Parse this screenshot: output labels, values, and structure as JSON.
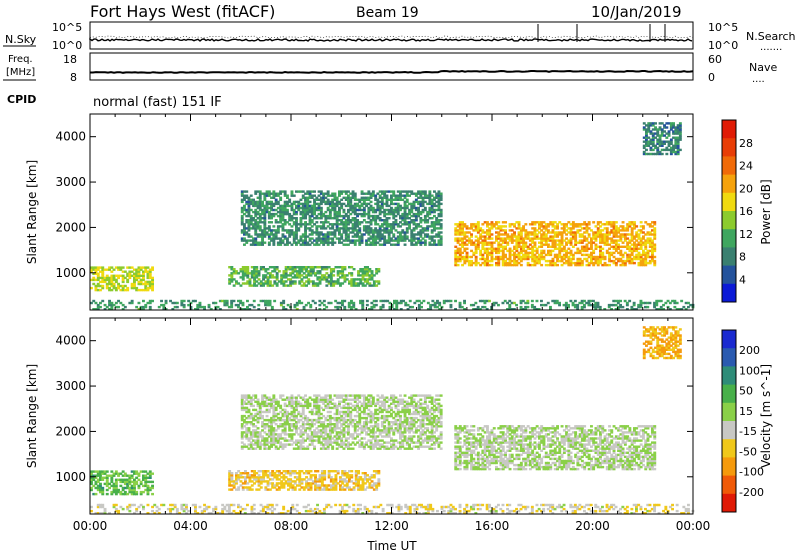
{
  "header": {
    "station": "Fort Hays West (fitACF)",
    "beam": "Beam 19",
    "date": "10/Jan/2019"
  },
  "noise_panel": {
    "left_label": "N.Sky",
    "left_ticks": [
      "10^5",
      "10^0"
    ],
    "right_label": "N.Search",
    "right_ticks": [
      "10^5",
      "10^0"
    ],
    "legend_dots": "......."
  },
  "freq_panel": {
    "left_label_1": "Freq.",
    "left_label_2": "[MHz]",
    "left_ticks": [
      "18",
      "8"
    ],
    "right_label": "Nave",
    "right_ticks": [
      "60",
      "0"
    ],
    "legend_dots": "...."
  },
  "cpid": {
    "label": "CPID",
    "text": "normal (fast) 151 IF"
  },
  "colors": {
    "power_scale": [
      "#0b1ad6",
      "#24539c",
      "#3a8070",
      "#3fa65f",
      "#8ccb2e",
      "#f0da10",
      "#f5a20c",
      "#f06a08",
      "#e83d06",
      "#e01b05"
    ],
    "velocity_scale": [
      "#e01a06",
      "#f05a08",
      "#f59a0c",
      "#f0c81a",
      "#c8c8c4",
      "#8ad048",
      "#48b04a",
      "#2e8c78",
      "#2a5ab0",
      "#1a2ad0"
    ]
  },
  "chart_data": [
    {
      "type": "heatmap",
      "name": "power",
      "xlabel": "",
      "ylabel": "Slant Range [km]",
      "xlim": [
        "00:00",
        "24:00"
      ],
      "ylim": [
        180,
        4500
      ],
      "yticks": [
        1000,
        2000,
        3000,
        4000
      ],
      "colorbar": {
        "label": "Power [dB]",
        "ticks": [
          4,
          8,
          12,
          16,
          20,
          24,
          28
        ],
        "range": [
          0,
          32
        ]
      },
      "echo_regions": [
        {
          "t_start": "00:00",
          "t_end": "02:30",
          "range_km": [
            600,
            1100
          ],
          "value": 16
        },
        {
          "t_start": "05:30",
          "t_end": "11:30",
          "range_km": [
            700,
            1150
          ],
          "value": 12
        },
        {
          "t_start": "06:00",
          "t_end": "14:00",
          "range_km": [
            1600,
            2800
          ],
          "value": 9
        },
        {
          "t_start": "14:30",
          "t_end": "22:30",
          "range_km": [
            1150,
            2100
          ],
          "value": 20
        },
        {
          "t_start": "22:00",
          "t_end": "23:30",
          "range_km": [
            3600,
            4300
          ],
          "value": 8
        },
        {
          "t_start": "00:00",
          "t_end": "24:00",
          "range_km": [
            180,
            400
          ],
          "value": 10
        }
      ]
    },
    {
      "type": "heatmap",
      "name": "velocity",
      "xlabel": "Time UT",
      "ylabel": "Slant Range [km]",
      "xticks": [
        "00:00",
        "04:00",
        "08:00",
        "12:00",
        "16:00",
        "20:00",
        "00:00"
      ],
      "ylim": [
        180,
        4500
      ],
      "yticks": [
        1000,
        2000,
        3000,
        4000
      ],
      "colorbar": {
        "label": "Velocity [m s^-1]",
        "ticks": [
          200,
          100,
          50,
          15,
          -15,
          -50,
          -100,
          -200
        ],
        "range": [
          -250,
          250
        ]
      },
      "echo_regions": [
        {
          "t_start": "00:00",
          "t_end": "02:30",
          "range_km": [
            600,
            1100
          ],
          "value": 60
        },
        {
          "t_start": "05:30",
          "t_end": "11:30",
          "range_km": [
            700,
            1150
          ],
          "value": -70
        },
        {
          "t_start": "06:00",
          "t_end": "14:00",
          "range_km": [
            1600,
            2800
          ],
          "value": 0
        },
        {
          "t_start": "14:30",
          "t_end": "22:30",
          "range_km": [
            1150,
            2100
          ],
          "value": 0
        },
        {
          "t_start": "22:00",
          "t_end": "23:30",
          "range_km": [
            3600,
            4300
          ],
          "value": -100
        },
        {
          "t_start": "00:00",
          "t_end": "24:00",
          "range_km": [
            180,
            400
          ],
          "value": -40
        }
      ]
    }
  ]
}
